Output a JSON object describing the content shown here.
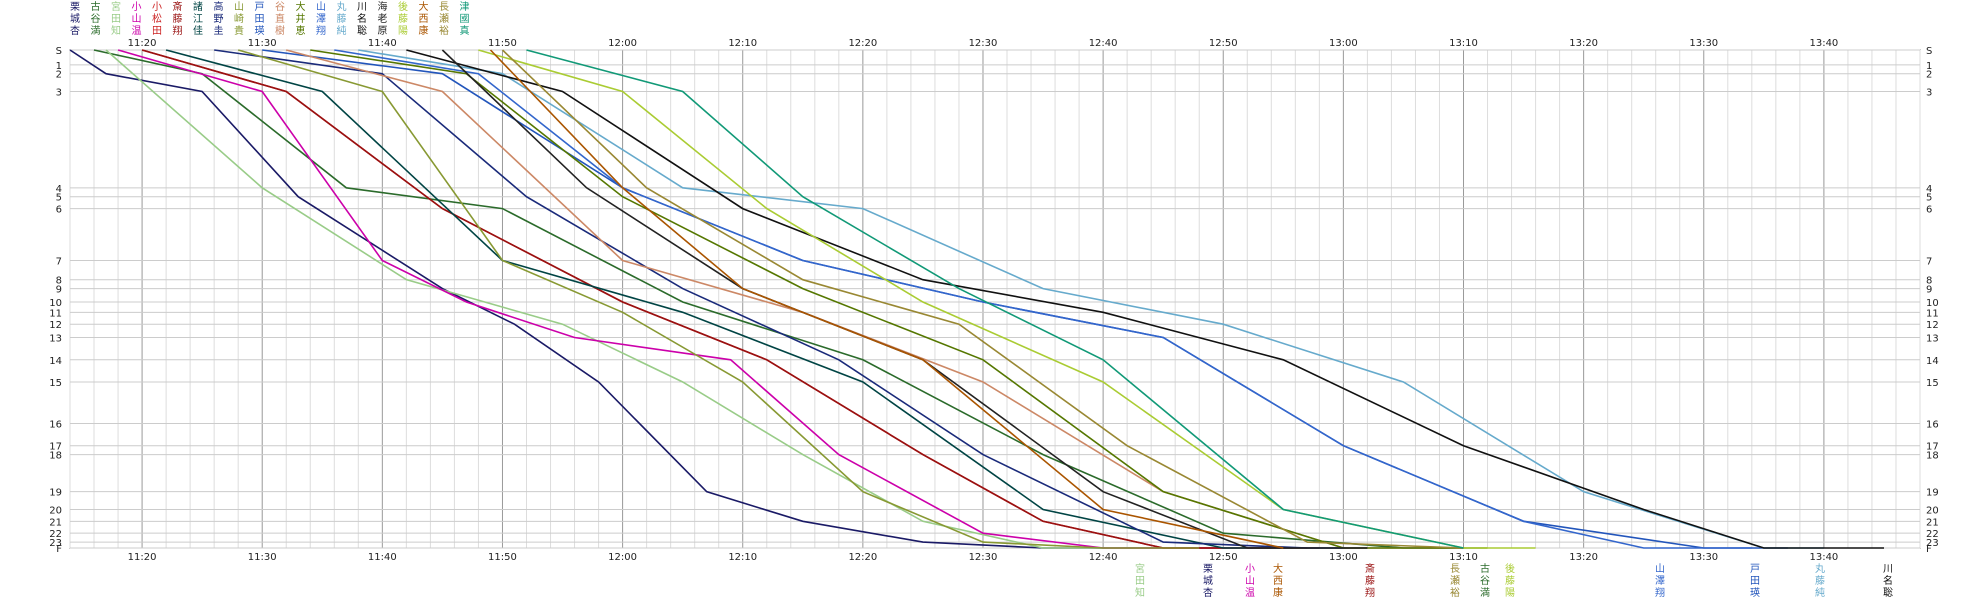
{
  "chart_data": {
    "type": "line",
    "title": "",
    "xlabel": "",
    "ylabel": "",
    "x_ticks": [
      "11:20",
      "11:30",
      "11:40",
      "11:50",
      "12:00",
      "12:10",
      "12:20",
      "12:30",
      "12:40",
      "12:50",
      "13:00",
      "13:10",
      "13:20",
      "13:30",
      "13:40"
    ],
    "y_ticks_left": [
      "S",
      "1",
      "2",
      "3",
      "4",
      "5",
      "6",
      "7",
      "8",
      "9",
      "10",
      "11",
      "12",
      "13",
      "14",
      "15",
      "16",
      "17",
      "18",
      "19",
      "20",
      "21",
      "22",
      "23",
      "F"
    ],
    "y_ticks_right": [
      "S",
      "1",
      "2",
      "3",
      "4",
      "5",
      "6",
      "7",
      "8",
      "9",
      "10",
      "11",
      "12",
      "13",
      "14",
      "15",
      "16",
      "17",
      "18",
      "19",
      "20",
      "21",
      "22",
      "23",
      "F"
    ],
    "grid": true,
    "legend": "top (runner names at start), bottom (names at finish)",
    "series": [
      {
        "name": "栗城杏",
        "color": "#1a1a66",
        "x": [
          "11:14",
          "11:17",
          "11:25",
          "11:33",
          "11:45",
          "11:51",
          "11:58",
          "12:07",
          "12:15",
          "12:25",
          "12:35",
          "12:42",
          "12:47",
          "12:50"
        ],
        "y": [
          0,
          2,
          3,
          5,
          9,
          12,
          15,
          19,
          21,
          23,
          25,
          27,
          28,
          29
        ]
      },
      {
        "name": "古谷満",
        "color": "#2b6b2b",
        "x": [
          "11:16",
          "11:25",
          "11:37",
          "11:50",
          "12:05",
          "12:20",
          "12:35",
          "12:50",
          "13:05",
          "13:10"
        ],
        "y": [
          0,
          2,
          4,
          6,
          10,
          14,
          18,
          22,
          26,
          29
        ]
      },
      {
        "name": "宮田知",
        "color": "#99cc88",
        "x": [
          "11:17",
          "11:30",
          "11:42",
          "11:55",
          "12:05",
          "12:15",
          "12:25",
          "12:35",
          "12:45",
          "12:52"
        ],
        "y": [
          0,
          4,
          8,
          12,
          15,
          18,
          21,
          24,
          27,
          29
        ]
      },
      {
        "name": "小山温",
        "color": "#cc00aa",
        "x": [
          "11:18",
          "11:30",
          "11:40",
          "11:47",
          "11:56",
          "12:09",
          "12:18",
          "12:30",
          "12:40",
          "12:50",
          "12:54"
        ],
        "y": [
          0,
          3,
          7,
          10,
          13,
          14,
          18,
          22,
          25,
          28,
          29
        ]
      },
      {
        "name": "小松田",
        "color": "#cc2222",
        "x": [
          "11:20",
          "11:32",
          "11:45",
          "12:00",
          "12:12",
          "12:25",
          "12:35",
          "12:45",
          "12:52",
          "12:57"
        ],
        "y": [
          0,
          3,
          6,
          10,
          14,
          18,
          21,
          24,
          27,
          28
        ]
      },
      {
        "name": "斎藤翔",
        "color": "#991111",
        "x": [
          "11:20",
          "11:32",
          "11:45",
          "12:00",
          "12:12",
          "12:25",
          "12:35",
          "12:45",
          "12:53",
          "12:58"
        ],
        "y": [
          0,
          3,
          6,
          10,
          14,
          18,
          21,
          24,
          27,
          28
        ]
      },
      {
        "name": "諸江佳",
        "color": "#004444",
        "x": [
          "11:22",
          "11:35",
          "11:50",
          "12:05",
          "12:20",
          "12:35",
          "12:50",
          "13:02"
        ],
        "y": [
          0,
          3,
          7,
          11,
          15,
          20,
          25,
          29
        ]
      },
      {
        "name": "高野圭",
        "color": "#1a2a7a",
        "x": [
          "11:26",
          "11:40",
          "11:52",
          "12:05",
          "12:18",
          "12:30",
          "12:45",
          "12:57",
          "13:02"
        ],
        "y": [
          0,
          2,
          5,
          9,
          14,
          18,
          23,
          27,
          29
        ]
      },
      {
        "name": "山崎貴",
        "color": "#889933",
        "x": [
          "11:28",
          "11:40",
          "11:50",
          "12:00",
          "12:10",
          "12:20",
          "12:30",
          "12:40",
          "12:48"
        ],
        "y": [
          0,
          3,
          7,
          11,
          15,
          19,
          23,
          27,
          29
        ]
      },
      {
        "name": "戸田瑛",
        "color": "#2255bb",
        "x": [
          "11:30",
          "11:45",
          "12:00",
          "12:15",
          "12:30",
          "12:45",
          "13:00",
          "13:15",
          "13:30",
          "13:37"
        ],
        "y": [
          0,
          2,
          4,
          7,
          10,
          13,
          17,
          21,
          24,
          26
        ]
      },
      {
        "name": "谷直樹",
        "color": "#cc8866",
        "x": [
          "11:32",
          "11:45",
          "12:00",
          "12:15",
          "12:30",
          "12:45",
          "13:00",
          "13:10"
        ],
        "y": [
          0,
          3,
          7,
          11,
          15,
          19,
          24,
          28
        ]
      },
      {
        "name": "大井恵",
        "color": "#557700",
        "x": [
          "11:34",
          "11:47",
          "12:00",
          "12:15",
          "12:30",
          "12:45",
          "13:00",
          "13:12"
        ],
        "y": [
          0,
          2,
          5,
          9,
          14,
          19,
          24,
          28
        ]
      },
      {
        "name": "山澤翔",
        "color": "#3366cc",
        "x": [
          "11:36",
          "11:48",
          "12:00",
          "12:15",
          "12:30",
          "12:45",
          "13:00",
          "13:15",
          "13:25",
          "13:34"
        ],
        "y": [
          0,
          2,
          4,
          7,
          10,
          13,
          17,
          21,
          25,
          29
        ]
      },
      {
        "name": "丸藤純",
        "color": "#66aacc",
        "x": [
          "11:38",
          "11:50",
          "12:05",
          "12:20",
          "12:35",
          "12:50",
          "13:05",
          "13:20",
          "13:35",
          "13:40"
        ],
        "y": [
          0,
          2,
          4,
          6,
          9,
          12,
          15,
          19,
          24,
          26
        ]
      },
      {
        "name": "川名聡",
        "color": "#111111",
        "x": [
          "11:42",
          "11:55",
          "12:10",
          "12:25",
          "12:40",
          "12:55",
          "13:10",
          "13:25",
          "13:35",
          "13:45"
        ],
        "y": [
          0,
          3,
          6,
          8,
          11,
          14,
          17,
          20,
          24,
          29
        ]
      },
      {
        "name": "海老原",
        "color": "#222222",
        "x": [
          "11:45",
          "11:57",
          "12:10",
          "12:25",
          "12:40",
          "12:52",
          "13:02"
        ],
        "y": [
          0,
          4,
          9,
          14,
          19,
          24,
          29
        ]
      },
      {
        "name": "後藤陽",
        "color": "#aacc33",
        "x": [
          "11:48",
          "12:00",
          "12:12",
          "12:25",
          "12:40",
          "12:55",
          "13:10",
          "13:16"
        ],
        "y": [
          0,
          3,
          6,
          10,
          15,
          20,
          25,
          28
        ]
      },
      {
        "name": "大西康",
        "color": "#aa5500",
        "x": [
          "11:49",
          "12:00",
          "12:10",
          "12:25",
          "12:40",
          "12:55"
        ],
        "y": [
          0,
          4,
          9,
          14,
          20,
          28
        ]
      },
      {
        "name": "長瀬裕",
        "color": "#998833",
        "x": [
          "11:50",
          "12:02",
          "12:15",
          "12:28",
          "12:42",
          "12:57",
          "13:10"
        ],
        "y": [
          0,
          4,
          8,
          12,
          17,
          23,
          28
        ]
      },
      {
        "name": "津國真",
        "color": "#119977",
        "x": [
          "11:52",
          "12:05",
          "12:15",
          "12:28",
          "12:40",
          "12:55",
          "13:10"
        ],
        "y": [
          0,
          3,
          5,
          9,
          14,
          20,
          28
        ]
      }
    ]
  },
  "top_labels": [
    "栗城杏",
    "古谷満",
    "宮田知",
    "小山温",
    "小松田",
    "斎藤翔",
    "諸江佳",
    "高野圭",
    "山崎貴",
    "戸田瑛",
    "谷直樹",
    "大井恵",
    "山澤翔",
    "丸藤純",
    "川名聡",
    "海老原",
    "後藤陽",
    "大西康",
    "長瀬裕",
    "津國真"
  ],
  "bottom_labels": [
    {
      "text": "宮田知",
      "color": "#99cc88"
    },
    {
      "text": "栗城杏",
      "color": "#1a1a66"
    },
    {
      "text": "小山温",
      "color": "#cc00aa"
    },
    {
      "text": "大西康",
      "color": "#aa5500"
    },
    {
      "text": "斎藤翔",
      "color": "#991111"
    },
    {
      "text": "長瀬裕",
      "color": "#998833"
    },
    {
      "text": "古谷満",
      "color": "#2b6b2b"
    },
    {
      "text": "後藤陽",
      "color": "#aacc33"
    },
    {
      "text": "山澤翔",
      "color": "#3366cc"
    },
    {
      "text": "戸田瑛",
      "color": "#2255bb"
    },
    {
      "text": "丸藤純",
      "color": "#66aacc"
    },
    {
      "text": "川名聡",
      "color": "#111111"
    }
  ]
}
